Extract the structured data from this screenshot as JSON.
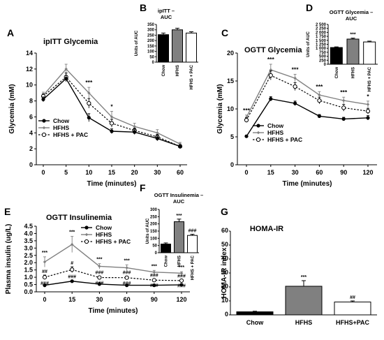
{
  "panel_letters": {
    "A": "A",
    "B": "B",
    "C": "C",
    "D": "D",
    "E": "E",
    "F": "F",
    "G": "G"
  },
  "colors": {
    "chow": "#000000",
    "hfhs": "#808080",
    "pac": "#ffffff",
    "axis": "#000000"
  },
  "chart_data": [
    {
      "id": "A",
      "type": "line",
      "title": "ipITT Glycemia",
      "xlabel": "Time (minutes)",
      "ylabel": "Glycemia (mM)",
      "ylim": [
        0,
        14
      ],
      "yticks": [
        "0",
        "2",
        "4",
        "6",
        "8",
        "10",
        "12",
        "14"
      ],
      "categories": [
        "0",
        "5",
        "10",
        "15",
        "20",
        "30",
        "60"
      ],
      "series": [
        {
          "name": "Chow",
          "values": [
            8.2,
            10.8,
            5.9,
            4.2,
            4.1,
            3.3,
            2.3
          ],
          "errors": [
            0.3,
            0.4,
            0.5,
            0.3,
            0.3,
            0.3,
            0.2
          ]
        },
        {
          "name": "HFHS",
          "values": [
            8.7,
            12.0,
            9.0,
            6.0,
            4.8,
            4.0,
            2.6
          ],
          "errors": [
            0.4,
            0.6,
            0.7,
            0.7,
            0.4,
            0.4,
            0.2
          ]
        },
        {
          "name": "HFHS + PAC",
          "values": [
            8.6,
            11.0,
            7.7,
            5.2,
            4.3,
            3.5,
            2.3
          ],
          "errors": [
            0.3,
            0.5,
            0.6,
            0.5,
            0.3,
            0.3,
            0.2
          ]
        }
      ],
      "legend": [
        "Chow",
        "HFHS",
        "HFHS + PAC"
      ],
      "annotations": [
        {
          "x": "10",
          "text": "***"
        },
        {
          "x": "15",
          "text": "*"
        }
      ]
    },
    {
      "id": "B",
      "type": "bar",
      "title": "ipITT – AUC",
      "ylabel": "Units of AUC",
      "ylim": [
        0,
        350
      ],
      "yticks": [
        "0",
        "50",
        "100",
        "150",
        "200",
        "250",
        "300",
        "350"
      ],
      "categories": [
        "Chow",
        "HFHS",
        "HFHS + PAC"
      ],
      "values": [
        255,
        300,
        270
      ],
      "errors": [
        15,
        15,
        12
      ]
    },
    {
      "id": "C",
      "type": "line",
      "title": "OGTT Glycemia",
      "xlabel": "Time (minutes)",
      "ylabel": "Glycemia (mM)",
      "ylim": [
        0,
        20
      ],
      "yticks": [
        "0",
        "5",
        "10",
        "15",
        "20"
      ],
      "categories": [
        "0",
        "15",
        "30",
        "60",
        "90",
        "120"
      ],
      "series": [
        {
          "name": "Chow",
          "values": [
            5.1,
            11.8,
            11.0,
            8.7,
            8.2,
            8.4
          ],
          "errors": [
            0.2,
            0.4,
            0.4,
            0.3,
            0.3,
            0.4
          ]
        },
        {
          "name": "HFHS",
          "values": [
            8.5,
            17.0,
            15.5,
            12.5,
            11.5,
            10.8
          ],
          "errors": [
            0.4,
            1.0,
            0.7,
            0.6,
            0.6,
            0.6
          ]
        },
        {
          "name": "HFHS + PAC",
          "values": [
            8.0,
            16.0,
            14.0,
            11.5,
            10.2,
            9.6
          ],
          "errors": [
            0.4,
            0.8,
            0.7,
            0.6,
            0.6,
            0.5
          ]
        }
      ],
      "legend": [
        "Chow",
        "HFHS",
        "HFHS + PAC"
      ],
      "annotations": [
        {
          "x": "0",
          "text": "***"
        },
        {
          "x": "15",
          "text": "***"
        },
        {
          "x": "30",
          "text": "***"
        },
        {
          "x": "60",
          "text": "***"
        },
        {
          "x": "90",
          "text": "***"
        },
        {
          "x": "120",
          "text": "*"
        }
      ]
    },
    {
      "id": "D",
      "type": "bar",
      "title": "OGTT Glycemia – AUC",
      "ylabel": "Units of AUC",
      "ylim": [
        0,
        2500
      ],
      "yticks": [
        "0",
        "250",
        "500",
        "750",
        "1 000",
        "1 250",
        "1 500",
        "1 750",
        "2 000",
        "2 250",
        "2 500"
      ],
      "categories": [
        "Chow",
        "HFHS",
        "HFHS + PAC"
      ],
      "values": [
        1050,
        1580,
        1400
      ],
      "errors": [
        40,
        60,
        50
      ],
      "annotations": [
        {
          "x": "HFHS",
          "text": "***"
        }
      ]
    },
    {
      "id": "E",
      "type": "line",
      "title": "OGTT Insulinemia",
      "xlabel": "Time (minutes)",
      "ylabel": "Plasma insulin (ug/L)",
      "ylim": [
        0,
        4.5
      ],
      "yticks": [
        "0.0",
        "0.5",
        "1.0",
        "1.5",
        "2.0",
        "2.5",
        "3.0",
        "3.5",
        "4.0",
        "4.5"
      ],
      "categories": [
        "0",
        "15",
        "30",
        "60",
        "90",
        "120"
      ],
      "series": [
        {
          "name": "Chow",
          "values": [
            0.45,
            0.73,
            0.53,
            0.45,
            0.45,
            0.48
          ],
          "errors": [
            0.03,
            0.05,
            0.04,
            0.03,
            0.03,
            0.04
          ]
        },
        {
          "name": "HFHS",
          "values": [
            2.05,
            3.25,
            1.75,
            1.65,
            1.35,
            1.28
          ],
          "errors": [
            0.35,
            0.55,
            0.18,
            0.2,
            0.12,
            0.1
          ]
        },
        {
          "name": "HFHS + PAC",
          "values": [
            1.0,
            1.52,
            0.98,
            0.97,
            0.8,
            0.77
          ],
          "errors": [
            0.15,
            0.2,
            0.1,
            0.1,
            0.08,
            0.07
          ]
        }
      ],
      "legend": [
        "Chow",
        "HFHS",
        "HFHS + PAC"
      ],
      "annotations_top": [
        "***",
        "***",
        "***",
        "***",
        "***",
        "***"
      ],
      "annotations_mid": [
        "##",
        "#",
        "###",
        "###",
        "###",
        "###"
      ],
      "annotations_low": [
        "###",
        "###",
        "###",
        "###",
        "###",
        "###"
      ]
    },
    {
      "id": "F",
      "type": "bar",
      "title": "OGTT Insulinemia – AUC",
      "ylabel": "Units of AUC",
      "ylim": [
        0,
        300
      ],
      "yticks": [
        "0",
        "50",
        "100",
        "150",
        "200",
        "250",
        "300"
      ],
      "categories": [
        "Chow",
        "HFHS",
        "HFHS + PAC"
      ],
      "values": [
        60,
        215,
        120
      ],
      "errors": [
        8,
        18,
        8
      ],
      "annotations": [
        {
          "x": "HFHS",
          "text": "***"
        },
        {
          "x": "HFHS + PAC",
          "text": "###"
        }
      ]
    },
    {
      "id": "G",
      "type": "bar",
      "title": "HOMA-IR",
      "ylabel": "HOMA-IR index",
      "ylim": [
        0,
        60
      ],
      "yticks": [
        "0",
        "10",
        "20",
        "30",
        "40",
        "50",
        "60"
      ],
      "categories": [
        "Chow",
        "HFHS",
        "HFHS+PAC"
      ],
      "values": [
        2.2,
        20.5,
        9.2
      ],
      "errors": [
        0.4,
        4.0,
        0.8
      ],
      "annotations": [
        {
          "x": "HFHS",
          "text": "***"
        },
        {
          "x": "HFHS+PAC",
          "text": "##"
        }
      ]
    }
  ]
}
